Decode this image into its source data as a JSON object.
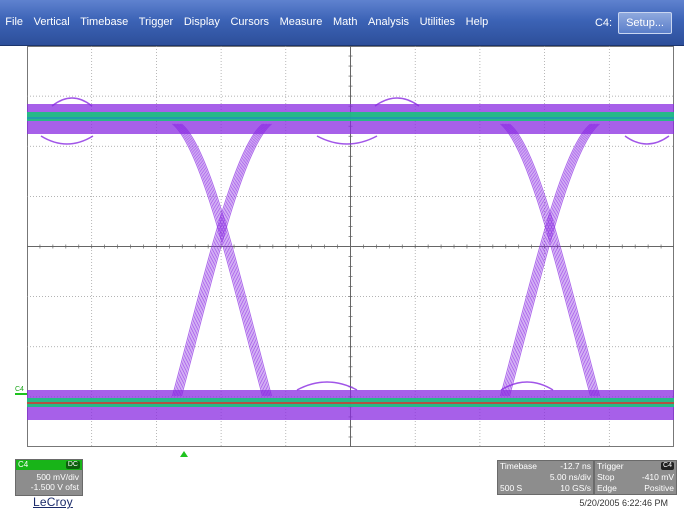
{
  "menu": {
    "items": [
      "File",
      "Vertical",
      "Timebase",
      "Trigger",
      "Display",
      "Cursors",
      "Measure",
      "Math",
      "Analysis",
      "Utilities",
      "Help"
    ],
    "channel_label": "C4:",
    "setup_label": "Setup..."
  },
  "channel_panel": {
    "name": "C4",
    "coupling": "DC",
    "volts_per_div": "500 mV/div",
    "offset": "-1.500 V ofst",
    "color": "#18b418"
  },
  "timebase_panel": {
    "title": "Timebase",
    "delay": "-12.7 ns",
    "time_per_div": "5.00 ns/div",
    "samples": "500 S",
    "sample_rate": "10 GS/s"
  },
  "trigger_panel": {
    "title": "Trigger",
    "source": "C4",
    "mode": "Stop",
    "level": "-410 mV",
    "type": "Edge",
    "slope": "Positive"
  },
  "trace_marker": "C4",
  "logo": "LeCroy",
  "datetime": "5/20/2005 6:22:46 PM",
  "colors": {
    "menu_bar": "#3c63b6",
    "trace_purple": "#8a2be2",
    "trace_green": "#19c37d",
    "trace_red": "#e0302a",
    "grid": "#9a9a9a"
  }
}
